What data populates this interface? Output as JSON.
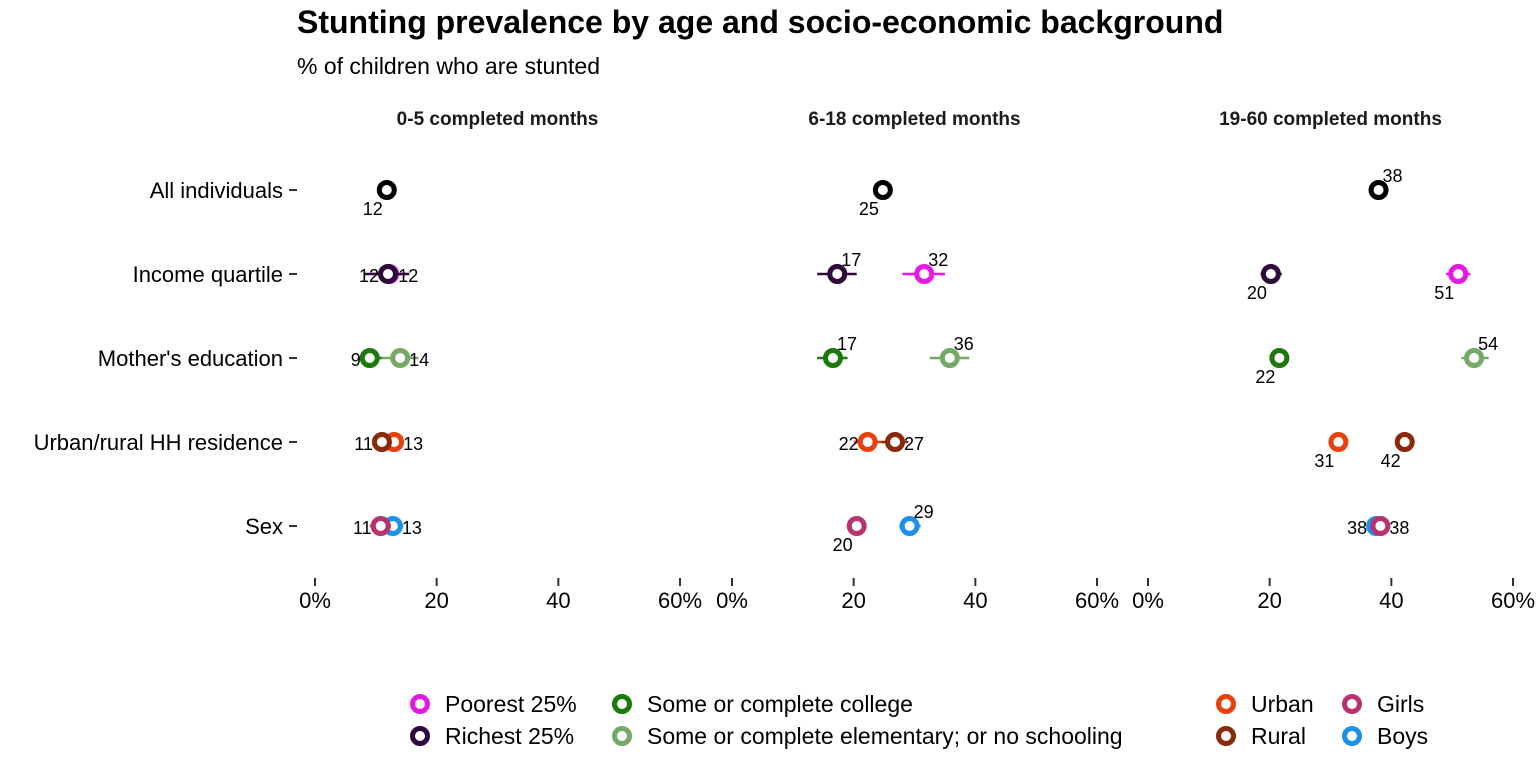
{
  "chart_data": {
    "type": "scatter",
    "title": "Stunting prevalence by age and socio-economic background",
    "subtitle": "% of children who are stunted",
    "rows": [
      "All individuals",
      "Income quartile",
      "Mother's education",
      "Urban/rural HH residence",
      "Sex"
    ],
    "xlim": [
      0,
      60
    ],
    "x_ticks": [
      {
        "value": 0,
        "label": "0%"
      },
      {
        "value": 20,
        "label": "20"
      },
      {
        "value": 40,
        "label": "40"
      },
      {
        "value": 60,
        "label": "60%"
      }
    ],
    "series": [
      {
        "name": "All individuals",
        "color": "#000000",
        "legend": false
      },
      {
        "name": "Poorest 25%",
        "color": "#e41ae4",
        "legend": true
      },
      {
        "name": "Richest 25%",
        "color": "#2d0a3a",
        "legend": true
      },
      {
        "name": "Some or complete college",
        "color": "#1c7a0c",
        "legend": true
      },
      {
        "name": "Some or complete elementary; or no schooling",
        "color": "#74aa66",
        "legend": true
      },
      {
        "name": "Urban",
        "color": "#e8400f",
        "legend": true
      },
      {
        "name": "Rural",
        "color": "#8a2a0c",
        "legend": true
      },
      {
        "name": "Girls",
        "color": "#b73270",
        "legend": true
      },
      {
        "name": "Boys",
        "color": "#1d90e8",
        "legend": true
      }
    ],
    "facets": [
      {
        "label": "0-5 completed months",
        "points": [
          {
            "row": "All individuals",
            "series": "All individuals",
            "value": 11.8,
            "ci": [
              11.3,
              12.3
            ],
            "label": "12",
            "label_pos": "below-left"
          },
          {
            "row": "Income quartile",
            "series": "Poorest 25%",
            "value": 12.2,
            "ci": [
              9.5,
              15.0
            ],
            "label": "12",
            "label_pos": "right"
          },
          {
            "row": "Income quartile",
            "series": "Richest 25%",
            "value": 12.0,
            "ci": [
              8.0,
              15.5
            ],
            "label": "12",
            "label_pos": "left"
          },
          {
            "row": "Mother's education",
            "series": "Some or complete college",
            "value": 9.0,
            "ci": [
              7.0,
              11.0
            ],
            "label": "9",
            "label_pos": "left"
          },
          {
            "row": "Mother's education",
            "series": "Some or complete elementary; or no schooling",
            "value": 14.0,
            "ci": [
              11.0,
              17.0
            ],
            "label": "14",
            "label_pos": "right"
          },
          {
            "row": "Urban/rural HH residence",
            "series": "Urban",
            "value": 13.0,
            "ci": [
              11.5,
              14.5
            ],
            "label": "13",
            "label_pos": "right"
          },
          {
            "row": "Urban/rural HH residence",
            "series": "Rural",
            "value": 11.0,
            "ci": [
              9.5,
              12.5
            ],
            "label": "11",
            "label_pos": "left"
          },
          {
            "row": "Sex",
            "series": "Boys",
            "value": 12.8,
            "ci": [
              11.0,
              14.5
            ],
            "label": "13",
            "label_pos": "right"
          },
          {
            "row": "Sex",
            "series": "Girls",
            "value": 10.8,
            "ci": [
              9.0,
              12.5
            ],
            "label": "11",
            "label_pos": "left"
          }
        ]
      },
      {
        "label": "6-18 completed months",
        "points": [
          {
            "row": "All individuals",
            "series": "All individuals",
            "value": 24.8,
            "ci": [
              24.3,
              25.3
            ],
            "label": "25",
            "label_pos": "below-left"
          },
          {
            "row": "Income quartile",
            "series": "Poorest 25%",
            "value": 31.6,
            "ci": [
              28.0,
              35.0
            ],
            "label": "32",
            "label_pos": "above-right"
          },
          {
            "row": "Income quartile",
            "series": "Richest 25%",
            "value": 17.3,
            "ci": [
              14.0,
              20.5
            ],
            "label": "17",
            "label_pos": "above-right"
          },
          {
            "row": "Mother's education",
            "series": "Some or complete college",
            "value": 16.6,
            "ci": [
              14.0,
              19.0
            ],
            "label": "17",
            "label_pos": "above-right"
          },
          {
            "row": "Mother's education",
            "series": "Some or complete elementary; or no schooling",
            "value": 35.8,
            "ci": [
              32.5,
              39.0
            ],
            "label": "36",
            "label_pos": "above-right"
          },
          {
            "row": "Urban/rural HH residence",
            "series": "Urban",
            "value": 22.3,
            "ci": [
              20.0,
              24.5
            ],
            "label": "22",
            "label_pos": "left"
          },
          {
            "row": "Urban/rural HH residence",
            "series": "Rural",
            "value": 26.8,
            "ci": [
              24.5,
              29.0
            ],
            "label": "27",
            "label_pos": "right"
          },
          {
            "row": "Sex",
            "series": "Boys",
            "value": 29.2,
            "ci": [
              27.5,
              31.0
            ],
            "label": "29",
            "label_pos": "above-right"
          },
          {
            "row": "Sex",
            "series": "Girls",
            "value": 20.5,
            "ci": [
              19.0,
              22.0
            ],
            "label": "20",
            "label_pos": "below-left"
          }
        ]
      },
      {
        "label": "19-60 completed months",
        "points": [
          {
            "row": "All individuals",
            "series": "All individuals",
            "value": 37.9,
            "ci": [
              37.4,
              38.4
            ],
            "label": "38",
            "label_pos": "above-right"
          },
          {
            "row": "Income quartile",
            "series": "Poorest 25%",
            "value": 51.0,
            "ci": [
              49.0,
              53.0
            ],
            "label": "51",
            "label_pos": "below-left"
          },
          {
            "row": "Income quartile",
            "series": "Richest 25%",
            "value": 20.2,
            "ci": [
              18.5,
              22.0
            ],
            "label": "20",
            "label_pos": "below-left"
          },
          {
            "row": "Mother's education",
            "series": "Some or complete college",
            "value": 21.6,
            "ci": [
              20.0,
              23.0
            ],
            "label": "22",
            "label_pos": "below-left"
          },
          {
            "row": "Mother's education",
            "series": "Some or complete elementary; or no schooling",
            "value": 53.6,
            "ci": [
              51.5,
              56.0
            ],
            "label": "54",
            "label_pos": "above-right"
          },
          {
            "row": "Urban/rural HH residence",
            "series": "Urban",
            "value": 31.3,
            "ci": [
              30.0,
              32.5
            ],
            "label": "31",
            "label_pos": "below-left"
          },
          {
            "row": "Urban/rural HH residence",
            "series": "Rural",
            "value": 42.2,
            "ci": [
              41.0,
              43.5
            ],
            "label": "42",
            "label_pos": "below-left"
          },
          {
            "row": "Sex",
            "series": "Boys",
            "value": 37.5,
            "ci": [
              36.0,
              39.0
            ],
            "label": "38",
            "label_pos": "left"
          },
          {
            "row": "Sex",
            "series": "Girls",
            "value": 38.2,
            "ci": [
              37.0,
              39.5
            ],
            "label": "38",
            "label_pos": "right"
          }
        ]
      }
    ],
    "legend_position": "bottom",
    "grid": false
  }
}
